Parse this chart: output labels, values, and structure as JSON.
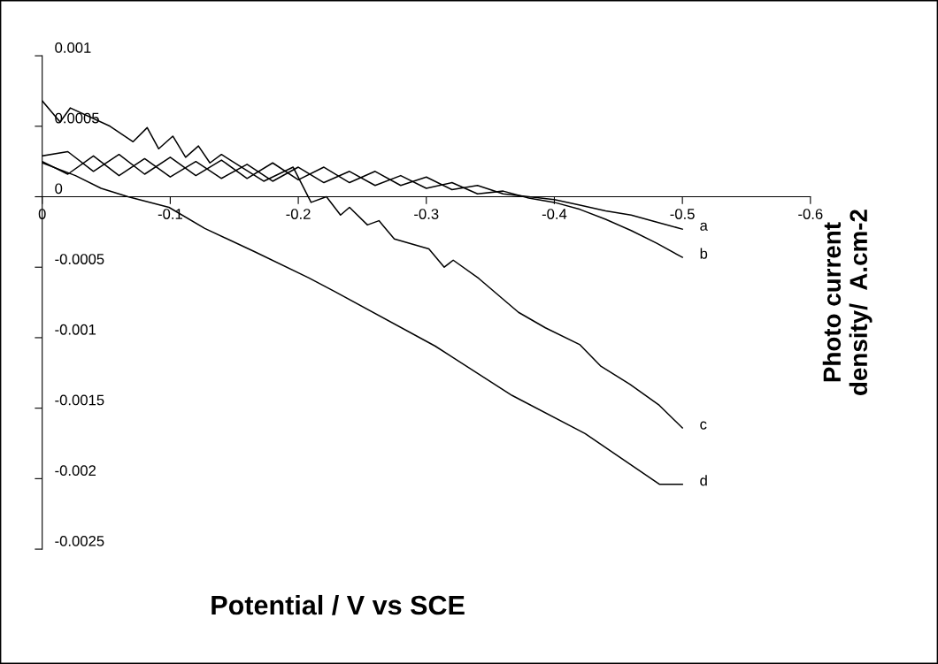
{
  "chart_data": {
    "type": "line",
    "xlabel": "Potential / V vs SCE",
    "ylabel": "Photo current\ndensity/  A.cm-2",
    "xlim": [
      0,
      -0.6
    ],
    "xticks": [
      0,
      -0.1,
      -0.2,
      -0.3,
      -0.4,
      -0.5,
      -0.6
    ],
    "ylim": [
      -0.0025,
      0.001
    ],
    "yticks": [
      -0.0025,
      -0.002,
      -0.0015,
      -0.001,
      -0.0005,
      0,
      0.0005,
      0.001
    ],
    "grid": false,
    "legend": false,
    "marker": "none",
    "line_style": "solid",
    "series": [
      {
        "name": "a",
        "color": "#000000",
        "x": [
          0,
          -0.02,
          -0.04,
          -0.06,
          -0.08,
          -0.1,
          -0.12,
          -0.14,
          -0.16,
          -0.18,
          -0.2,
          -0.22,
          -0.24,
          -0.26,
          -0.28,
          -0.3,
          -0.32,
          -0.34,
          -0.36,
          -0.38,
          -0.4,
          -0.42,
          -0.44,
          -0.46,
          -0.48,
          -0.5
        ],
        "values": [
          0.00029,
          0.00032,
          0.00018,
          0.0003,
          0.00016,
          0.00028,
          0.00015,
          0.00026,
          0.00013,
          0.00024,
          0.00012,
          0.00021,
          0.0001,
          0.00018,
          8e-05,
          0.00014,
          5e-05,
          8e-05,
          2e-05,
          0.0,
          -2e-05,
          -6e-05,
          -0.0001,
          -0.00013,
          -0.00018,
          -0.00023
        ]
      },
      {
        "name": "b",
        "color": "#000000",
        "x": [
          0,
          -0.02,
          -0.04,
          -0.06,
          -0.08,
          -0.1,
          -0.12,
          -0.14,
          -0.16,
          -0.18,
          -0.2,
          -0.22,
          -0.24,
          -0.26,
          -0.28,
          -0.3,
          -0.32,
          -0.34,
          -0.36,
          -0.38,
          -0.4,
          -0.42,
          -0.44,
          -0.46,
          -0.48,
          -0.5
        ],
        "values": [
          0.00025,
          0.00016,
          0.00029,
          0.00015,
          0.00027,
          0.00014,
          0.00025,
          0.00013,
          0.00023,
          0.00011,
          0.00021,
          0.0001,
          0.00018,
          8e-05,
          0.00015,
          6e-05,
          0.0001,
          2e-05,
          4e-05,
          -1e-05,
          -4e-05,
          -9e-05,
          -0.00016,
          -0.00024,
          -0.00033,
          -0.00043
        ]
      },
      {
        "name": "c",
        "color": "#000000",
        "x": [
          0,
          -0.014,
          -0.022,
          -0.053,
          -0.071,
          -0.082,
          -0.091,
          -0.102,
          -0.112,
          -0.122,
          -0.131,
          -0.14,
          -0.173,
          -0.196,
          -0.21,
          -0.222,
          -0.233,
          -0.24,
          -0.254,
          -0.263,
          -0.275,
          -0.302,
          -0.314,
          -0.321,
          -0.341,
          -0.372,
          -0.393,
          -0.42,
          -0.436,
          -0.459,
          -0.482,
          -0.5
        ],
        "values": [
          0.00068,
          0.00053,
          0.00063,
          0.0005,
          0.00039,
          0.00049,
          0.00034,
          0.00043,
          0.00028,
          0.00036,
          0.00024,
          0.0003,
          0.00011,
          0.00021,
          -4e-05,
          0.0,
          -0.00013,
          -7.5e-05,
          -0.0002,
          -0.00017,
          -0.0003,
          -0.00037,
          -0.0005,
          -0.00045,
          -0.00058,
          -0.00082,
          -0.00093,
          -0.00105,
          -0.0012,
          -0.00133,
          -0.00148,
          -0.00164
        ]
      },
      {
        "name": "d",
        "color": "#000000",
        "x": [
          0,
          -0.026,
          -0.046,
          -0.067,
          -0.099,
          -0.127,
          -0.166,
          -0.208,
          -0.228,
          -0.307,
          -0.367,
          -0.424,
          -0.482,
          -0.5
        ],
        "values": [
          0.00024,
          0.00015,
          6e-05,
          0.0,
          -7.5e-05,
          -0.000225,
          -0.00039,
          -0.000575,
          -0.00067,
          -0.00106,
          -0.00141,
          -0.00168,
          -0.00204,
          -0.00204
        ]
      }
    ]
  }
}
